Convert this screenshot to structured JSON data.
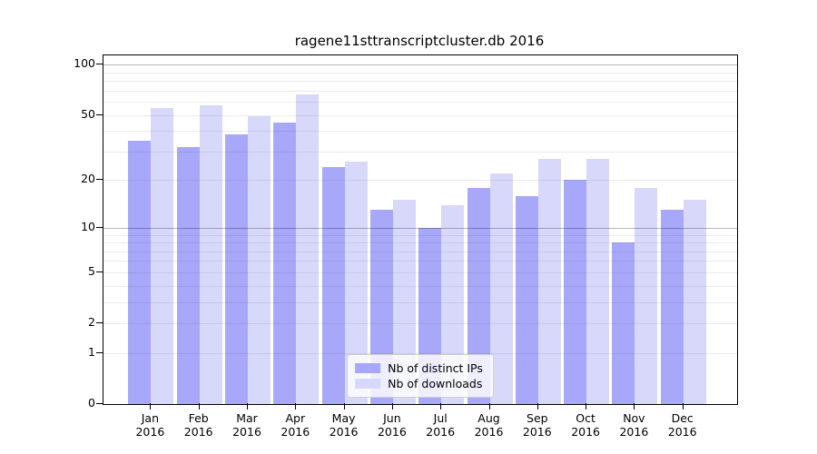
{
  "title": "ragene11sttranscriptcluster.db 2016",
  "chart_data": {
    "type": "bar",
    "title": "ragene11sttranscriptcluster.db 2016",
    "categories": [
      "Jan",
      "Feb",
      "Mar",
      "Apr",
      "May",
      "Jun",
      "Jul",
      "Aug",
      "Sep",
      "Oct",
      "Nov",
      "Dec"
    ],
    "year": "2016",
    "series": [
      {
        "key": "distinct-ips",
        "name": "Nb of distinct IPs",
        "color": "#a8a8fa",
        "values": [
          35,
          32,
          38,
          45,
          24,
          13,
          10,
          18,
          16,
          20,
          8,
          13
        ]
      },
      {
        "key": "downloads",
        "name": "Nb of downloads",
        "color": "#d8d8fa",
        "values": [
          55,
          57,
          49,
          66,
          26,
          15,
          14,
          22,
          27,
          27,
          18,
          15
        ]
      }
    ],
    "y_axis": {
      "scale": "log1p",
      "ticks": [
        100,
        50,
        20,
        10,
        5,
        2,
        1,
        0
      ],
      "minor_gridlines": [
        3,
        4,
        6,
        7,
        8,
        9,
        30,
        40,
        60,
        70,
        80,
        90
      ],
      "major_gridlines": [
        10,
        100
      ],
      "ylim": [
        0,
        113.5
      ]
    },
    "legend_position": "lower center",
    "grid": true
  }
}
